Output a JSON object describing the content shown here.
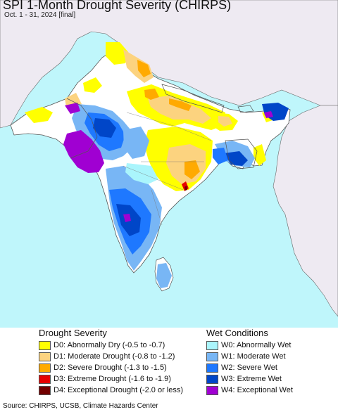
{
  "title": "SPI 1-Month Drought Severity (CHIRPS)",
  "subtitle": "Oct. 1 - 31, 2024 [final]",
  "colors": {
    "ocean": "#bff6fb",
    "land_outside": "#eeeaf2",
    "land_normal": "#ffffff",
    "border": "#555555"
  },
  "legend": {
    "drought": {
      "heading": "Drought Severity",
      "items": [
        {
          "code": "D0",
          "label": "D0: Abnormally Dry (-0.5 to -0.7)",
          "color": "#ffff00"
        },
        {
          "code": "D1",
          "label": "D1: Moderate Drought (-0.8 to -1.2)",
          "color": "#fcd37f"
        },
        {
          "code": "D2",
          "label": "D2: Severe Drought (-1.3 to -1.5)",
          "color": "#ffaa00"
        },
        {
          "code": "D3",
          "label": "D3: Extreme Drought (-1.6 to -1.9)",
          "color": "#e60000"
        },
        {
          "code": "D4",
          "label": "D4: Exceptional Drought (-2.0 or less)",
          "color": "#730000"
        }
      ]
    },
    "wet": {
      "heading": "Wet Conditions",
      "items": [
        {
          "code": "W0",
          "label": "W0: Abnormally Wet",
          "color": "#aaf5fc"
        },
        {
          "code": "W1",
          "label": "W1: Moderate Wet",
          "color": "#78b6f5"
        },
        {
          "code": "W2",
          "label": "W2: Severe Wet",
          "color": "#1e78ff"
        },
        {
          "code": "W3",
          "label": "W3: Extreme Wet",
          "color": "#0046c8"
        },
        {
          "code": "W4",
          "label": "W4: Exceptional Wet",
          "color": "#a000d2"
        }
      ]
    }
  },
  "source": "Source: CHIRPS, UCSB, Climate Hazards Center"
}
